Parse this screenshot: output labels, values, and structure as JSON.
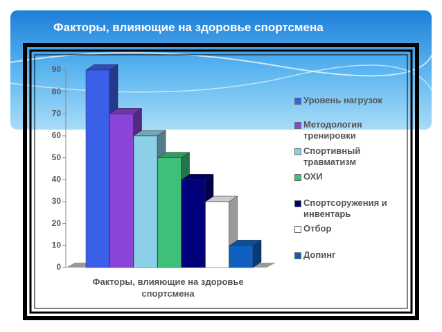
{
  "chart_data": {
    "type": "bar",
    "title": "Факторы, влияющие на здоровье спортсмена",
    "categories": [
      "Факторы, влияющие на здоровье спортсмена"
    ],
    "series": [
      {
        "name": "Уровень нагрузок",
        "color": "#3a5fe8",
        "values": [
          90
        ]
      },
      {
        "name": "Методология тренировки",
        "color": "#8a44d8",
        "values": [
          70
        ]
      },
      {
        "name": "Спортивный травматизм",
        "color": "#8ccfe8",
        "values": [
          60
        ]
      },
      {
        "name": "ОХИ",
        "color": "#3ec07a",
        "values": [
          50
        ]
      },
      {
        "name": "Спортсоружения и инвентарь",
        "color": "#00007a",
        "values": [
          40
        ]
      },
      {
        "name": "Отбор",
        "color": "#ffffff",
        "values": [
          30
        ]
      },
      {
        "name": "Допинг",
        "color": "#1060c0",
        "values": [
          10
        ]
      }
    ],
    "ylim": [
      0,
      90
    ],
    "yticks": [
      0,
      10,
      20,
      30,
      40,
      50,
      60,
      70,
      80,
      90
    ],
    "grid": false
  }
}
